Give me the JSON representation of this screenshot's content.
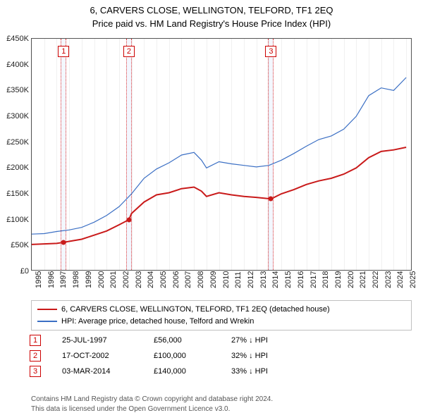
{
  "title": "6, CARVERS CLOSE, WELLINGTON, TELFORD, TF1 2EQ",
  "subtitle": "Price paid vs. HM Land Registry's House Price Index (HPI)",
  "chart": {
    "type": "line",
    "xlim": [
      1995,
      2025.5
    ],
    "ylim": [
      0,
      450000
    ],
    "ytick_step": 50000,
    "y_prefix": "£",
    "y_suffix": "K",
    "background_color": "#ffffff",
    "grid_color_v": "#f0f0f0",
    "marker_band_color": "rgba(160,190,255,0.12)",
    "marker_border_color": "#d33",
    "series": [
      {
        "name": "6, CARVERS CLOSE, WELLINGTON, TELFORD, TF1 2EQ (detached house)",
        "color": "#c91a1a",
        "width": 2,
        "data": [
          [
            1995,
            52000
          ],
          [
            1996,
            53000
          ],
          [
            1997,
            54000
          ],
          [
            1997.56,
            56000
          ],
          [
            1998,
            58000
          ],
          [
            1999,
            62000
          ],
          [
            2000,
            70000
          ],
          [
            2001,
            78000
          ],
          [
            2002,
            90000
          ],
          [
            2002.79,
            100000
          ],
          [
            2003,
            112000
          ],
          [
            2004,
            134000
          ],
          [
            2005,
            148000
          ],
          [
            2006,
            152000
          ],
          [
            2007,
            160000
          ],
          [
            2008,
            163000
          ],
          [
            2008.6,
            155000
          ],
          [
            2009,
            145000
          ],
          [
            2010,
            152000
          ],
          [
            2011,
            148000
          ],
          [
            2012,
            145000
          ],
          [
            2013,
            143000
          ],
          [
            2014.17,
            140000
          ],
          [
            2015,
            150000
          ],
          [
            2016,
            158000
          ],
          [
            2017,
            168000
          ],
          [
            2018,
            175000
          ],
          [
            2019,
            180000
          ],
          [
            2020,
            188000
          ],
          [
            2021,
            200000
          ],
          [
            2022,
            220000
          ],
          [
            2023,
            232000
          ],
          [
            2024,
            235000
          ],
          [
            2025,
            240000
          ]
        ]
      },
      {
        "name": "HPI: Average price, detached house, Telford and Wrekin",
        "color": "#3b6fc4",
        "width": 1.2,
        "data": [
          [
            1995,
            72000
          ],
          [
            1996,
            73000
          ],
          [
            1997,
            77000
          ],
          [
            1998,
            80000
          ],
          [
            1999,
            85000
          ],
          [
            2000,
            95000
          ],
          [
            2001,
            108000
          ],
          [
            2002,
            125000
          ],
          [
            2003,
            150000
          ],
          [
            2004,
            180000
          ],
          [
            2005,
            198000
          ],
          [
            2006,
            210000
          ],
          [
            2007,
            225000
          ],
          [
            2008,
            230000
          ],
          [
            2008.6,
            215000
          ],
          [
            2009,
            200000
          ],
          [
            2010,
            212000
          ],
          [
            2011,
            208000
          ],
          [
            2012,
            205000
          ],
          [
            2013,
            202000
          ],
          [
            2014,
            205000
          ],
          [
            2015,
            215000
          ],
          [
            2016,
            228000
          ],
          [
            2017,
            242000
          ],
          [
            2018,
            255000
          ],
          [
            2019,
            262000
          ],
          [
            2020,
            275000
          ],
          [
            2021,
            300000
          ],
          [
            2022,
            340000
          ],
          [
            2023,
            355000
          ],
          [
            2024,
            350000
          ],
          [
            2025,
            375000
          ]
        ]
      }
    ],
    "markers": [
      {
        "n": 1,
        "x": 1997.56,
        "y": 56000
      },
      {
        "n": 2,
        "x": 2002.79,
        "y": 100000
      },
      {
        "n": 3,
        "x": 2014.17,
        "y": 140000
      }
    ],
    "x_years": [
      1995,
      1996,
      1997,
      1998,
      1999,
      2000,
      2001,
      2002,
      2003,
      2004,
      2005,
      2006,
      2007,
      2008,
      2009,
      2010,
      2011,
      2012,
      2013,
      2014,
      2015,
      2016,
      2017,
      2018,
      2019,
      2020,
      2021,
      2022,
      2023,
      2024,
      2025
    ]
  },
  "legend": {
    "rows": [
      {
        "color": "#c91a1a",
        "label": "6, CARVERS CLOSE, WELLINGTON, TELFORD, TF1 2EQ (detached house)"
      },
      {
        "color": "#3b6fc4",
        "label": "HPI: Average price, detached house, Telford and Wrekin"
      }
    ]
  },
  "transactions": [
    {
      "n": "1",
      "date": "25-JUL-1997",
      "price": "£56,000",
      "pct": "27% ↓ HPI"
    },
    {
      "n": "2",
      "date": "17-OCT-2002",
      "price": "£100,000",
      "pct": "32% ↓ HPI"
    },
    {
      "n": "3",
      "date": "03-MAR-2014",
      "price": "£140,000",
      "pct": "33% ↓ HPI"
    }
  ],
  "footer": {
    "l1": "Contains HM Land Registry data © Crown copyright and database right 2024.",
    "l2": "This data is licensed under the Open Government Licence v3.0."
  }
}
